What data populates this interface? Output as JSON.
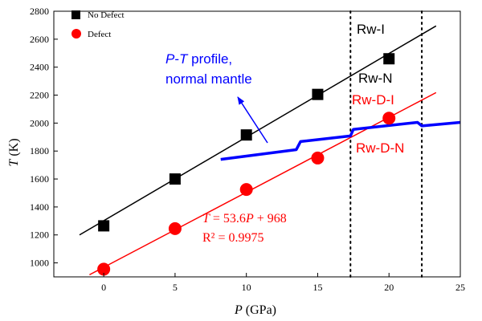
{
  "chart_data": {
    "type": "scatter",
    "xlabel": {
      "var": "P",
      "unit": " (GPa)"
    },
    "ylabel": {
      "var": "T",
      "unit": " (K)"
    },
    "xlim": [
      -3.5,
      25
    ],
    "ylim": [
      900,
      2800
    ],
    "xticks": [
      0,
      5,
      10,
      15,
      20,
      25
    ],
    "yticks": [
      1000,
      1200,
      1400,
      1600,
      1800,
      2000,
      2200,
      2400,
      2600,
      2800
    ],
    "grid": false,
    "legend": {
      "position": "top-left",
      "entries": [
        "No Defect",
        "Defect"
      ]
    },
    "series": [
      {
        "name": "No Defect",
        "marker": "square",
        "color": "#000000",
        "points": [
          [
            0,
            1265
          ],
          [
            5,
            1600
          ],
          [
            10,
            1915
          ],
          [
            15,
            2205
          ],
          [
            20,
            2460
          ]
        ],
        "fit_line": {
          "x": [
            -1.7,
            23.3
          ],
          "y": [
            1200,
            2695
          ]
        }
      },
      {
        "name": "Defect",
        "marker": "circle",
        "color": "#ff0000",
        "points": [
          [
            0,
            955
          ],
          [
            5,
            1245
          ],
          [
            10,
            1525
          ],
          [
            15,
            1750
          ],
          [
            20,
            2035
          ]
        ],
        "fit_line": {
          "x": [
            -1.0,
            23.3
          ],
          "y": [
            915,
            2218
          ]
        }
      }
    ],
    "profile": {
      "name": "P-T profile, normal mantle",
      "color": "#0000ff",
      "x": [
        8.2,
        13.5,
        13.8,
        17.3,
        17.5,
        22.0,
        22.3,
        25.0
      ],
      "y": [
        1740,
        1810,
        1868,
        1908,
        1955,
        2005,
        1980,
        2005
      ]
    },
    "vlines": [
      17.3,
      22.3
    ],
    "annotations": {
      "profile_label": {
        "var1": "P",
        "dash": "-",
        "var2": "T",
        "rest1": " profile,",
        "line2": "normal mantle",
        "color": "#0000ff"
      },
      "equation": {
        "var": "T",
        "mid": " = 53.6",
        "var2": "P",
        "tail": " + 968",
        "r2": "R² = 0.9975",
        "color": "#ff0000"
      },
      "region_labels": [
        {
          "text": "Rw-I",
          "color": "#000000"
        },
        {
          "text": "Rw-N",
          "color": "#000000"
        },
        {
          "text": "Rw-D-I",
          "color": "#ff0000"
        },
        {
          "text": "Rw-D-N",
          "color": "#ff0000"
        }
      ]
    }
  }
}
